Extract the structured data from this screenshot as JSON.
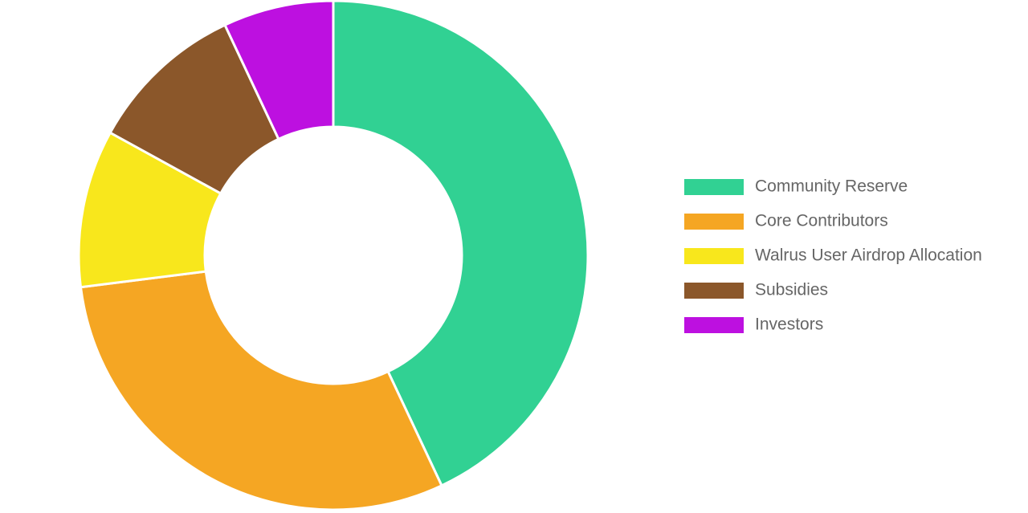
{
  "chart_data": {
    "type": "doughnut",
    "categories": [
      "Community Reserve",
      "Core Contributors",
      "Walrus User Airdrop Allocation",
      "Subsidies",
      "Investors"
    ],
    "values": [
      43,
      30,
      10,
      10,
      7
    ],
    "colors": [
      "#31d193",
      "#f5a623",
      "#f8e71c",
      "#8b572a",
      "#bd10e0"
    ],
    "legend": "right"
  }
}
